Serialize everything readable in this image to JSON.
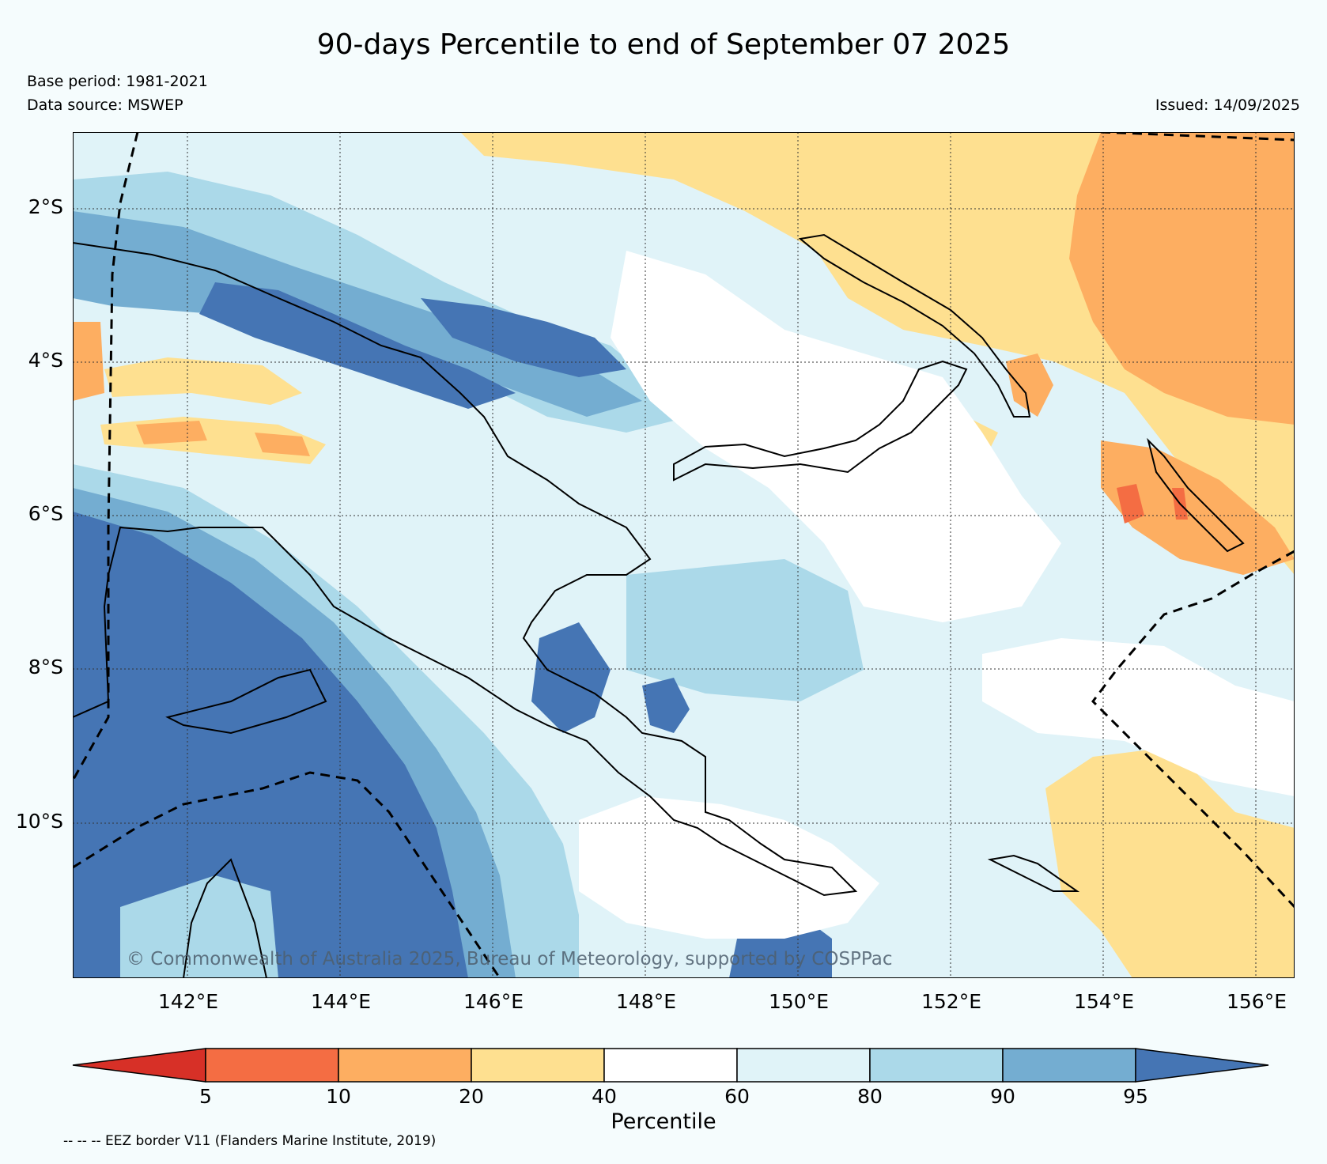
{
  "title": "90-days Percentile to end of September 07 2025",
  "base_period": "Base period: 1981-2021",
  "data_source": "Data source: MSWEP",
  "issued": "Issued: 14/09/2025",
  "copyright": "© Commonwealth of Australia 2025, Bureau of Meteorology, supported by COSPPac",
  "footnote": "-- -- -- EEZ border V11 (Flanders Marine Institute, 2019)",
  "map": {
    "lat_ticks": [
      "2°S",
      "4°S",
      "6°S",
      "8°S",
      "10°S"
    ],
    "lon_ticks": [
      "142°E",
      "144°E",
      "146°E",
      "148°E",
      "150°E",
      "152°E",
      "154°E",
      "156°E"
    ],
    "extent": {
      "lon_min": 140.5,
      "lon_max": 156.5,
      "lat_min": -12.0,
      "lat_max": -1.0
    }
  },
  "colorbar": {
    "title": "Percentile",
    "boundaries": [
      "5",
      "10",
      "20",
      "40",
      "60",
      "80",
      "90",
      "95"
    ],
    "colors": {
      "below_5": "#d73027",
      "5_10": "#f46d43",
      "10_20": "#fdae61",
      "20_40": "#fee090",
      "40_60": "#ffffff",
      "60_80": "#e0f3f8",
      "80_90": "#abd9e9",
      "90_95": "#74add1",
      "above_95": "#4575b4"
    }
  }
}
